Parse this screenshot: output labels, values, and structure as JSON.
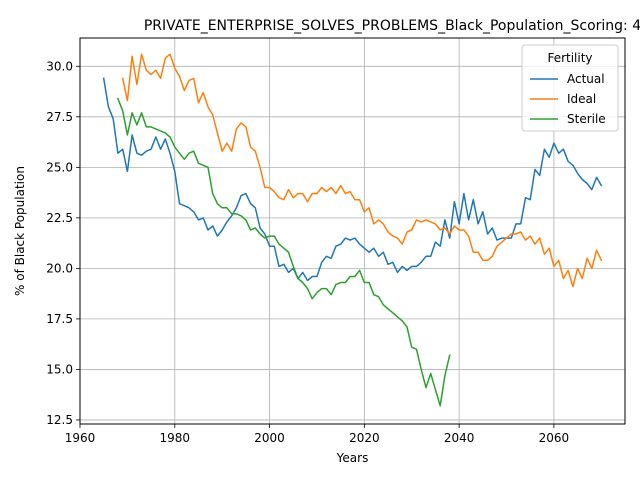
{
  "chart_data": {
    "type": "line",
    "title": "PRIVATE_ENTERPRISE_SOLVES_PROBLEMS_Black_Population_Scoring: 4",
    "xlabel": "Years",
    "ylabel": "% of Black Population",
    "xlim": [
      1960,
      2075
    ],
    "ylim": [
      12.3,
      31.4
    ],
    "xticks": [
      1960,
      1980,
      2000,
      2020,
      2040,
      2060
    ],
    "xtick_labels": [
      "1960",
      "1980",
      "2000",
      "2020",
      "2040",
      "2060"
    ],
    "yticks": [
      12.5,
      15.0,
      17.5,
      20.0,
      22.5,
      25.0,
      27.5,
      30.0
    ],
    "ytick_labels": [
      "12.5",
      "15.0",
      "17.5",
      "20.0",
      "22.5",
      "25.0",
      "27.5",
      "30.0"
    ],
    "grid": true,
    "legend": {
      "title": "Fertility",
      "position": "top-right"
    },
    "series": [
      {
        "name": "Actual",
        "color": "#1f77b4",
        "x": [
          1965,
          1966,
          1967,
          1968,
          1969,
          1970,
          1971,
          1972,
          1973,
          1974,
          1975,
          1976,
          1977,
          1978,
          1979,
          1980,
          1981,
          1982,
          1983,
          1984,
          1985,
          1986,
          1987,
          1988,
          1989,
          1990,
          1991,
          1992,
          1993,
          1994,
          1995,
          1996,
          1997,
          1998,
          1999,
          2000,
          2001,
          2002,
          2003,
          2004,
          2005,
          2006,
          2007,
          2008,
          2009,
          2010,
          2011,
          2012,
          2013,
          2014,
          2015,
          2016,
          2017,
          2018,
          2019,
          2020,
          2021,
          2022,
          2023,
          2024,
          2025,
          2026,
          2027,
          2028,
          2029,
          2030,
          2031,
          2032,
          2033,
          2034,
          2035,
          2036,
          2037,
          2038,
          2039,
          2040,
          2041,
          2042,
          2043,
          2044,
          2045,
          2046,
          2047,
          2048,
          2049,
          2050,
          2051,
          2052,
          2053,
          2054,
          2055,
          2056,
          2057,
          2058,
          2059,
          2060,
          2061,
          2062,
          2063,
          2064,
          2065,
          2066,
          2067,
          2068,
          2069,
          2070
        ],
        "y": [
          29.4,
          28.0,
          27.4,
          25.7,
          25.9,
          24.8,
          26.6,
          25.7,
          25.6,
          25.8,
          25.9,
          26.5,
          25.9,
          26.4,
          25.7,
          24.8,
          23.2,
          23.1,
          23.0,
          22.8,
          22.4,
          22.5,
          21.9,
          22.1,
          21.6,
          21.9,
          22.3,
          22.6,
          23.0,
          23.6,
          23.7,
          23.2,
          23.0,
          22.0,
          21.7,
          21.1,
          21.1,
          20.1,
          20.2,
          19.8,
          20.0,
          19.5,
          19.8,
          19.4,
          19.6,
          19.6,
          20.3,
          20.6,
          20.5,
          21.1,
          21.2,
          21.5,
          21.4,
          21.5,
          21.2,
          21.0,
          20.8,
          21.0,
          20.6,
          20.8,
          20.2,
          20.3,
          19.8,
          20.1,
          19.9,
          20.1,
          20.1,
          20.3,
          20.6,
          20.6,
          21.3,
          21.1,
          22.4,
          21.5,
          23.3,
          22.2,
          23.7,
          22.4,
          23.4,
          22.2,
          22.8,
          21.7,
          22.0,
          21.4,
          21.5,
          21.5,
          21.5,
          22.2,
          22.2,
          23.5,
          23.4,
          24.9,
          24.6,
          25.9,
          25.5,
          26.2,
          25.7,
          25.9,
          25.3,
          25.1,
          24.7,
          24.4,
          24.2,
          23.9,
          24.5,
          24.1
        ]
      },
      {
        "name": "Ideal",
        "color": "#ff7f0e",
        "x": [
          1969,
          1970,
          1971,
          1972,
          1973,
          1974,
          1975,
          1976,
          1977,
          1978,
          1979,
          1980,
          1981,
          1982,
          1983,
          1984,
          1985,
          1986,
          1987,
          1988,
          1989,
          1990,
          1991,
          1992,
          1993,
          1994,
          1995,
          1996,
          1997,
          1998,
          1999,
          2000,
          2001,
          2002,
          2003,
          2004,
          2005,
          2006,
          2007,
          2008,
          2009,
          2010,
          2011,
          2012,
          2013,
          2014,
          2015,
          2016,
          2017,
          2018,
          2019,
          2020,
          2021,
          2022,
          2023,
          2024,
          2025,
          2026,
          2027,
          2028,
          2029,
          2030,
          2031,
          2032,
          2033,
          2034,
          2035,
          2036,
          2037,
          2038,
          2039,
          2040,
          2041,
          2042,
          2043,
          2044,
          2045,
          2046,
          2047,
          2048,
          2049,
          2050,
          2051,
          2052,
          2053,
          2054,
          2055,
          2056,
          2057,
          2058,
          2059,
          2060,
          2061,
          2062,
          2063,
          2064,
          2065,
          2066,
          2067,
          2068,
          2069,
          2070
        ],
        "y": [
          29.4,
          28.3,
          30.5,
          29.1,
          30.6,
          29.8,
          29.6,
          29.8,
          29.4,
          30.4,
          30.6,
          29.9,
          29.5,
          28.8,
          29.3,
          29.4,
          28.2,
          28.7,
          28.0,
          27.6,
          26.7,
          25.8,
          26.2,
          25.8,
          26.9,
          27.2,
          27.0,
          26.0,
          25.8,
          25.0,
          24.0,
          24.0,
          23.8,
          23.5,
          23.4,
          23.9,
          23.5,
          23.7,
          23.7,
          23.3,
          23.7,
          23.7,
          24.0,
          23.8,
          24.0,
          23.7,
          24.1,
          23.7,
          23.8,
          23.4,
          23.4,
          22.8,
          23.0,
          22.2,
          22.4,
          22.2,
          21.8,
          21.6,
          21.5,
          21.2,
          21.8,
          21.9,
          22.4,
          22.3,
          22.4,
          22.3,
          22.2,
          21.9,
          22.0,
          21.7,
          22.1,
          21.9,
          21.9,
          21.6,
          20.8,
          20.8,
          20.4,
          20.4,
          20.6,
          21.1,
          21.3,
          21.5,
          21.7,
          21.7,
          21.8,
          21.4,
          21.6,
          21.2,
          21.5,
          20.7,
          21.0,
          20.1,
          20.4,
          19.5,
          19.9,
          19.1,
          20.0,
          19.5,
          20.5,
          20.0,
          20.9,
          20.4
        ]
      },
      {
        "name": "Sterile",
        "color": "#2ca02c",
        "x": [
          1968,
          1969,
          1970,
          1971,
          1972,
          1973,
          1974,
          1975,
          1976,
          1977,
          1978,
          1979,
          1980,
          1981,
          1982,
          1983,
          1984,
          1985,
          1986,
          1987,
          1988,
          1989,
          1990,
          1991,
          1992,
          1993,
          1994,
          1995,
          1996,
          1997,
          1998,
          1999,
          2000,
          2001,
          2002,
          2003,
          2004,
          2005,
          2006,
          2007,
          2008,
          2009,
          2010,
          2011,
          2012,
          2013,
          2014,
          2015,
          2016,
          2017,
          2018,
          2019,
          2020,
          2021,
          2022,
          2023,
          2024,
          2025,
          2026,
          2027,
          2028,
          2029,
          2030,
          2031,
          2032,
          2033,
          2034,
          2035,
          2036,
          2037,
          2038
        ],
        "y": [
          28.4,
          27.8,
          26.6,
          27.7,
          27.1,
          27.7,
          27.0,
          27.0,
          26.9,
          26.8,
          26.7,
          26.5,
          26.0,
          25.7,
          25.4,
          25.7,
          25.8,
          25.2,
          25.1,
          25.0,
          23.7,
          23.2,
          23.0,
          23.0,
          22.7,
          22.7,
          22.6,
          22.4,
          21.9,
          22.0,
          21.7,
          21.5,
          21.6,
          21.6,
          21.2,
          21.0,
          20.8,
          20.1,
          19.5,
          19.3,
          19.0,
          18.5,
          18.8,
          19.0,
          19.0,
          18.7,
          19.2,
          19.3,
          19.3,
          19.6,
          19.6,
          19.9,
          19.3,
          19.3,
          18.7,
          18.6,
          18.2,
          18.0,
          17.8,
          17.6,
          17.4,
          17.1,
          16.1,
          16.0,
          15.0,
          14.1,
          14.8,
          14.0,
          13.2,
          14.7,
          15.7
        ]
      }
    ]
  }
}
